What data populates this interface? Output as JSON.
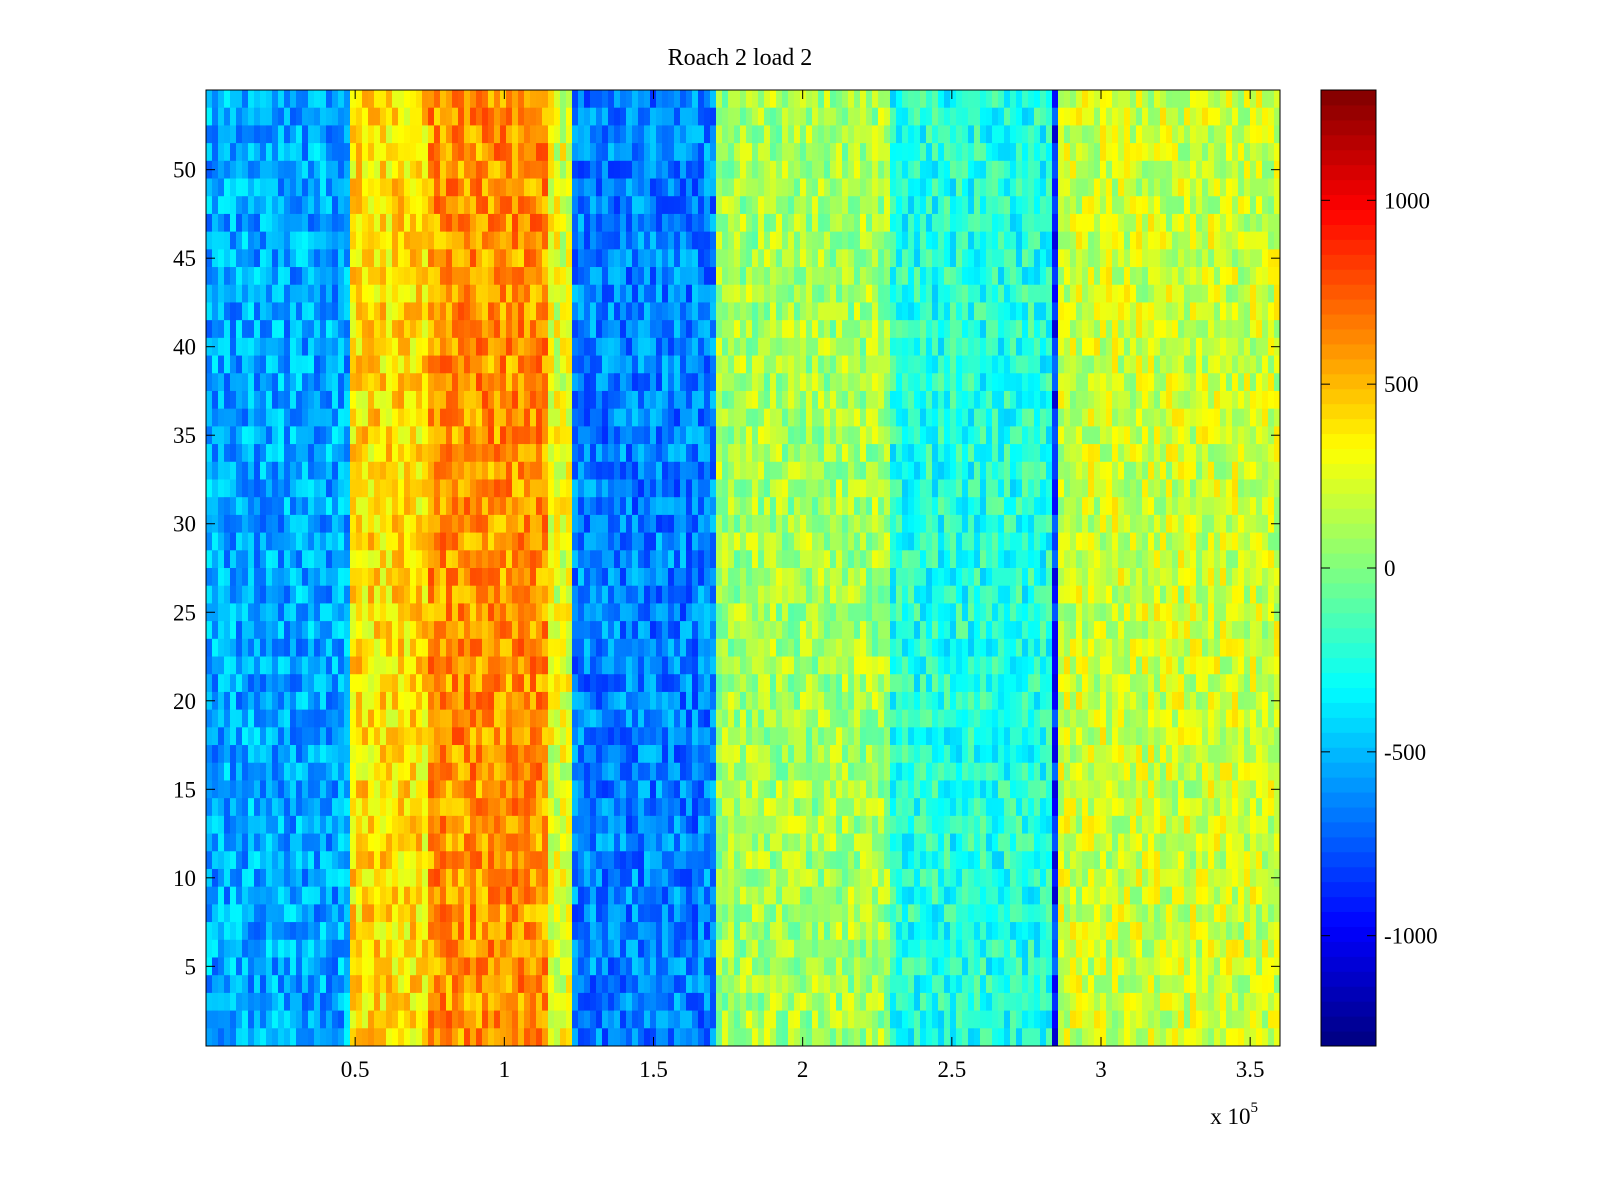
{
  "chart_data": {
    "type": "heatmap",
    "title": "Roach 2 load 2",
    "xlabel": "",
    "ylabel": "",
    "x_multiplier": {
      "base": "x 10",
      "exponent": "5"
    },
    "xlim": [
      0,
      3.6
    ],
    "ylim": [
      0.5,
      54.5
    ],
    "x_ticks": [
      {
        "value": 0.5,
        "label": "0.5"
      },
      {
        "value": 1,
        "label": "1"
      },
      {
        "value": 1.5,
        "label": "1.5"
      },
      {
        "value": 2,
        "label": "2"
      },
      {
        "value": 2.5,
        "label": "2.5"
      },
      {
        "value": 3,
        "label": "3"
      },
      {
        "value": 3.5,
        "label": "3.5"
      }
    ],
    "y_ticks": [
      {
        "value": 5,
        "label": "5"
      },
      {
        "value": 10,
        "label": "10"
      },
      {
        "value": 15,
        "label": "15"
      },
      {
        "value": 20,
        "label": "20"
      },
      {
        "value": 25,
        "label": "25"
      },
      {
        "value": 30,
        "label": "30"
      },
      {
        "value": 35,
        "label": "35"
      },
      {
        "value": 40,
        "label": "40"
      },
      {
        "value": 45,
        "label": "45"
      },
      {
        "value": 50,
        "label": "50"
      }
    ],
    "colormap": "jet",
    "colorbar": {
      "range": [
        -1300,
        1300
      ],
      "ticks": [
        {
          "value": -1000,
          "label": "-1000"
        },
        {
          "value": -500,
          "label": "-500"
        },
        {
          "value": 0,
          "label": "0"
        },
        {
          "value": 500,
          "label": "500"
        },
        {
          "value": 1000,
          "label": "1000"
        }
      ],
      "location": "right"
    },
    "rows": 54,
    "bands": [
      {
        "x_start": 0,
        "x_end": 0.49,
        "value": -550
      },
      {
        "x_start": 0.49,
        "x_end": 0.75,
        "value": 400
      },
      {
        "x_start": 0.75,
        "x_end": 1.15,
        "value": 600
      },
      {
        "x_start": 1.15,
        "x_end": 1.23,
        "value": 250
      },
      {
        "x_start": 1.23,
        "x_end": 1.7,
        "value": -650
      },
      {
        "x_start": 1.7,
        "x_end": 2.3,
        "value": 100
      },
      {
        "x_start": 2.3,
        "x_end": 2.84,
        "value": -250
      },
      {
        "x_start": 2.84,
        "x_end": 2.86,
        "value": -900
      },
      {
        "x_start": 2.86,
        "x_end": 3.6,
        "value": 200
      }
    ]
  }
}
